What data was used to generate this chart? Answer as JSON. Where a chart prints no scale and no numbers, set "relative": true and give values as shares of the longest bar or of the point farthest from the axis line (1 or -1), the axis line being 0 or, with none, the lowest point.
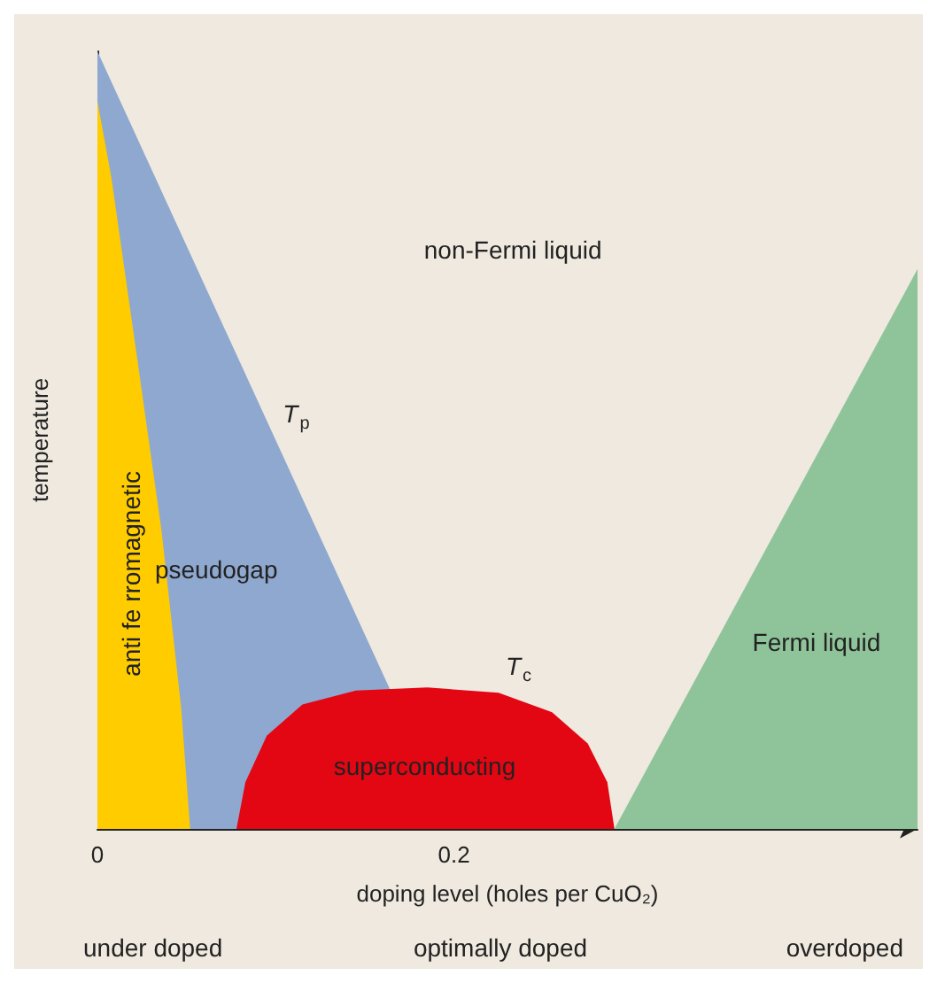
{
  "chart_data": {
    "type": "area",
    "relative": true,
    "xlabel": "doping level (holes per CuO₂)",
    "ylabel": "temperature",
    "xlim": [
      0,
      0.46
    ],
    "xticks": [
      0,
      0.2
    ],
    "grid": false,
    "legend": false,
    "marker": "none",
    "series": [
      {
        "name": "pseudogap",
        "color": "#8fa8cf",
        "x": [
          0,
          0.2
        ],
        "values": [
          1,
          0
        ]
      },
      {
        "name": "anti fe rromagnetic",
        "color": "#ffcc00",
        "x": [
          0,
          0.0078,
          0.022,
          0.036,
          0.047,
          0.052
        ],
        "values": [
          0.936,
          0.838,
          0.61,
          0.383,
          0.155,
          0
        ]
      },
      {
        "name": "superconducting",
        "color": "#e30613",
        "x": [
          0.078,
          0.083,
          0.095,
          0.115,
          0.145,
          0.185,
          0.225,
          0.255,
          0.275,
          0.286,
          0.29
        ],
        "values": [
          0,
          0.06,
          0.12,
          0.16,
          0.178,
          0.182,
          0.175,
          0.15,
          0.11,
          0.06,
          0
        ]
      },
      {
        "name": "Fermi liquid",
        "color": "#8fc49a",
        "x": [
          0.29,
          0.46
        ],
        "values": [
          0,
          0.72
        ]
      }
    ],
    "annotations": [
      "non-Fermi liquid",
      {
        "text": "T$_{p}$",
        "x": 0.1,
        "y": 0.5
      },
      {
        "text": "T$_{c}$",
        "x": 0.225,
        "y": 0.175
      },
      "under doped",
      "optimally doped",
      "overdoped"
    ]
  }
}
